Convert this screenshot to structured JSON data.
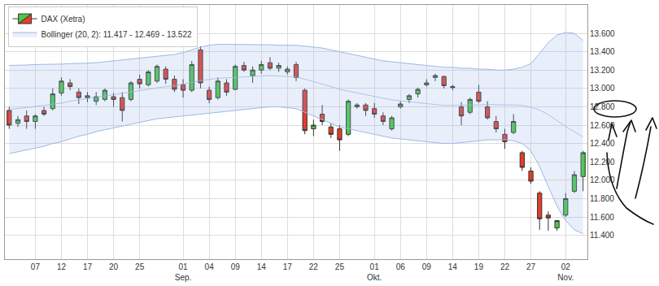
{
  "chart_data": {
    "type": "candlestick",
    "categories": [
      null,
      null,
      null,
      "07",
      null,
      null,
      "12",
      null,
      null,
      "17",
      null,
      null,
      "20",
      null,
      null,
      "25",
      null,
      null,
      null,
      null,
      "01 Sep.",
      null,
      null,
      "04",
      null,
      null,
      "09",
      null,
      null,
      "14",
      null,
      null,
      "17",
      null,
      null,
      "22",
      null,
      null,
      "25",
      null,
      null,
      null,
      "01 Okt.",
      null,
      null,
      "06",
      null,
      null,
      "09",
      null,
      null,
      "14",
      null,
      null,
      "19",
      null,
      null,
      "22",
      null,
      null,
      "27",
      null,
      null,
      null,
      "02 Nov.",
      null,
      null
    ],
    "series": [
      {
        "name": "DAX (Xetra)",
        "type": "candlestick",
        "colors": [
          "#45cc45",
          "#e63b2e"
        ],
        "open": [
          12760,
          12620,
          12700,
          12640,
          12760,
          12780,
          12950,
          13060,
          12960,
          12900,
          12860,
          12880,
          12910,
          12900,
          12880,
          13100,
          13040,
          13080,
          13210,
          13100,
          13040,
          12980,
          13420,
          12980,
          12900,
          13060,
          12990,
          13250,
          13140,
          13200,
          13280,
          13220,
          13180,
          13260,
          12980,
          12560,
          12720,
          12580,
          12560,
          12500,
          12800,
          12820,
          12780,
          12700,
          12560,
          12800,
          12880,
          12940,
          13040,
          13120,
          13130,
          13020,
          12800,
          12740,
          12960,
          12800,
          12640,
          12500,
          12520,
          12300,
          12100,
          11860,
          11620,
          11480,
          11620,
          11880,
          12040
        ],
        "high": [
          12800,
          12700,
          12760,
          12720,
          12800,
          13000,
          13120,
          13100,
          13000,
          12960,
          12960,
          13000,
          12950,
          12960,
          13080,
          13150,
          13200,
          13260,
          13240,
          13140,
          13100,
          13300,
          13460,
          13020,
          13120,
          13100,
          13260,
          13290,
          13240,
          13300,
          13340,
          13280,
          13240,
          13290,
          13000,
          12660,
          12820,
          12620,
          12600,
          12880,
          12840,
          12840,
          12840,
          12740,
          12700,
          12860,
          12940,
          13010,
          13100,
          13160,
          13140,
          13040,
          12850,
          12900,
          13040,
          12860,
          12700,
          12560,
          12720,
          12320,
          12140,
          11880,
          11660,
          11560,
          11860,
          12100,
          12320
        ],
        "low": [
          12560,
          12580,
          12560,
          12560,
          12700,
          12760,
          12920,
          12980,
          12830,
          12850,
          12820,
          12860,
          12800,
          12640,
          12860,
          13000,
          13020,
          13060,
          13050,
          12960,
          12900,
          12960,
          13000,
          12840,
          12880,
          12920,
          12980,
          13180,
          13060,
          13160,
          13200,
          13180,
          13150,
          13080,
          12500,
          12480,
          12600,
          12460,
          12320,
          12480,
          12780,
          12700,
          12680,
          12600,
          12540,
          12780,
          12840,
          12900,
          13020,
          13080,
          13000,
          12980,
          12600,
          12720,
          12840,
          12660,
          12520,
          12340,
          12500,
          12100,
          11960,
          11460,
          11450,
          11450,
          11600,
          11860,
          11880
        ],
        "close": [
          12600,
          12660,
          12640,
          12700,
          12720,
          12940,
          13080,
          13020,
          12900,
          12920,
          12910,
          12980,
          12880,
          12760,
          13060,
          13050,
          13180,
          13240,
          13100,
          12990,
          12980,
          13260,
          13060,
          12880,
          13080,
          12960,
          13240,
          13200,
          13200,
          13260,
          13220,
          13250,
          13210,
          13120,
          12540,
          12600,
          12640,
          12500,
          12440,
          12860,
          12820,
          12760,
          12720,
          12640,
          12680,
          12830,
          12920,
          12990,
          13060,
          13140,
          13030,
          13010,
          12700,
          12880,
          12860,
          12680,
          12560,
          12420,
          12640,
          12140,
          11990,
          11580,
          11590,
          11560,
          11800,
          12060,
          12300
        ]
      },
      {
        "name": "Bollinger (20, 2): 11.417 - 12.469 - 13.522",
        "type": "band",
        "color": "#9cb8e6",
        "upper": [
          13250,
          13250,
          13255,
          13260,
          13260,
          13260,
          13265,
          13270,
          13270,
          13275,
          13280,
          13290,
          13300,
          13310,
          13320,
          13330,
          13340,
          13350,
          13360,
          13370,
          13390,
          13420,
          13450,
          13470,
          13480,
          13480,
          13480,
          13480,
          13480,
          13480,
          13475,
          13470,
          13470,
          13470,
          13460,
          13450,
          13440,
          13420,
          13400,
          13380,
          13360,
          13340,
          13320,
          13300,
          13290,
          13280,
          13270,
          13260,
          13250,
          13240,
          13230,
          13230,
          13220,
          13220,
          13210,
          13210,
          13200,
          13200,
          13210,
          13230,
          13270,
          13380,
          13500,
          13580,
          13610,
          13600,
          13522
        ],
        "middle": [
          12770,
          12780,
          12790,
          12805,
          12815,
          12830,
          12840,
          12860,
          12875,
          12890,
          12905,
          12920,
          12935,
          12950,
          12965,
          12980,
          12995,
          13010,
          13020,
          13030,
          13045,
          13065,
          13085,
          13100,
          13110,
          13115,
          13120,
          13125,
          13130,
          13135,
          13140,
          13135,
          13130,
          13125,
          13100,
          13075,
          13050,
          13020,
          12990,
          12970,
          12950,
          12930,
          12910,
          12890,
          12875,
          12865,
          12855,
          12845,
          12835,
          12825,
          12815,
          12815,
          12815,
          12820,
          12820,
          12825,
          12820,
          12820,
          12820,
          12815,
          12795,
          12765,
          12715,
          12650,
          12585,
          12530,
          12469
        ],
        "lower": [
          12290,
          12310,
          12330,
          12350,
          12370,
          12400,
          12420,
          12450,
          12480,
          12500,
          12530,
          12550,
          12570,
          12590,
          12610,
          12630,
          12650,
          12670,
          12680,
          12690,
          12700,
          12710,
          12720,
          12730,
          12740,
          12750,
          12760,
          12770,
          12780,
          12790,
          12800,
          12800,
          12790,
          12780,
          12740,
          12700,
          12660,
          12620,
          12580,
          12560,
          12540,
          12520,
          12500,
          12480,
          12460,
          12450,
          12440,
          12430,
          12420,
          12410,
          12400,
          12400,
          12410,
          12420,
          12430,
          12440,
          12440,
          12440,
          12430,
          12400,
          12320,
          12150,
          11930,
          11720,
          11560,
          11460,
          11417
        ]
      }
    ],
    "ylim": [
      11140,
      13910
    ],
    "yticks": [
      {
        "value": 11400,
        "label": "11.400"
      },
      {
        "value": 11600,
        "label": "11.600"
      },
      {
        "value": 11800,
        "label": "11.800"
      },
      {
        "value": 12000,
        "label": "12.000"
      },
      {
        "value": 12200,
        "label": "12.200"
      },
      {
        "value": 12400,
        "label": "12.400"
      },
      {
        "value": 12600,
        "label": "12.600"
      },
      {
        "value": 12800,
        "label": "12.800"
      },
      {
        "value": 13000,
        "label": "13.000"
      },
      {
        "value": 13200,
        "label": "13.200"
      },
      {
        "value": 13400,
        "label": "13.400"
      },
      {
        "value": 13600,
        "label": "13.600"
      }
    ],
    "grid": true,
    "legend": "upper left"
  }
}
